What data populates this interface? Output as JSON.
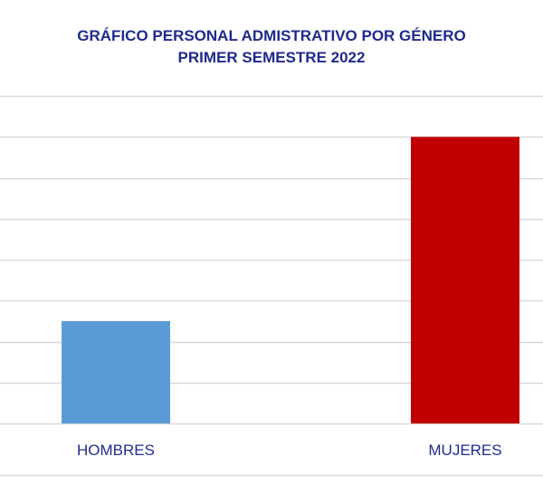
{
  "chart_data": {
    "type": "bar",
    "title": "GRÁFICO PERSONAL ADMISTRATIVO POR GÉNERO",
    "subtitle": "PRIMER SEMESTRE 2022",
    "categories": [
      "HOMBRES",
      "MUJERES"
    ],
    "values": [
      2.5,
      7
    ],
    "colors": [
      "#5b9bd5",
      "#c00000"
    ],
    "ylim": [
      0,
      8
    ],
    "grid": true,
    "legend": "none"
  }
}
